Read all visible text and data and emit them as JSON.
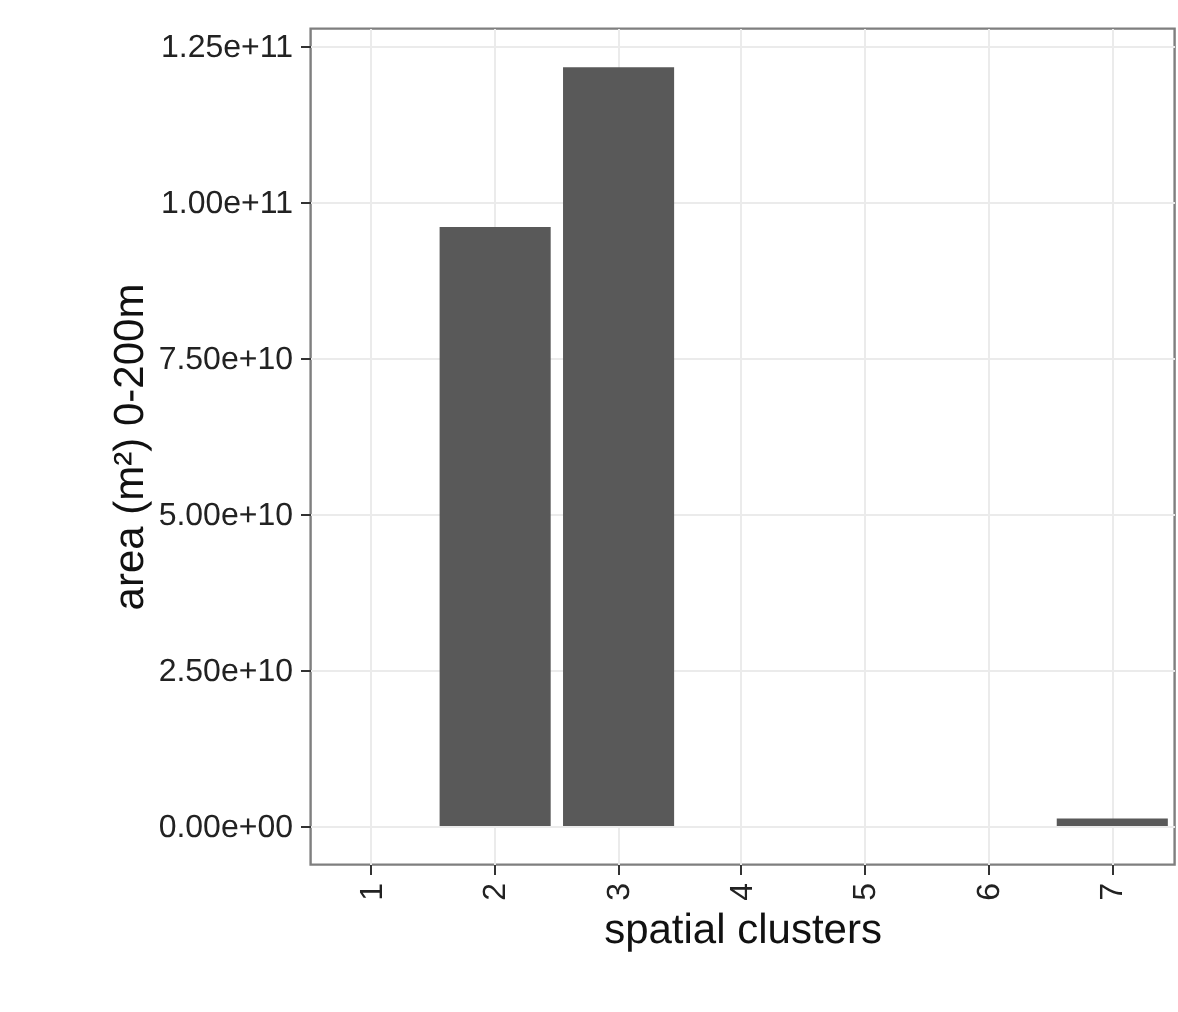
{
  "chart_data": {
    "type": "bar",
    "xlabel": "spatial clusters",
    "ylabel": "area (m²) 0-200m",
    "categories": [
      "1",
      "2",
      "3",
      "4",
      "5",
      "6",
      "7"
    ],
    "values": [
      null,
      96000000000,
      121600000000,
      null,
      null,
      null,
      1200000000
    ],
    "color": "#595959",
    "ylim": [
      -6100000000,
      127900000000
    ],
    "yticks": [
      {
        "value": 0,
        "label": "0.00e+00"
      },
      {
        "value": 25000000000,
        "label": "2.50e+10"
      },
      {
        "value": 50000000000,
        "label": "5.00e+10"
      },
      {
        "value": 75000000000,
        "label": "7.50e+10"
      },
      {
        "value": 100000000000,
        "label": "1.00e+11"
      },
      {
        "value": 125000000000,
        "label": "1.25e+11"
      }
    ],
    "grid": true
  }
}
